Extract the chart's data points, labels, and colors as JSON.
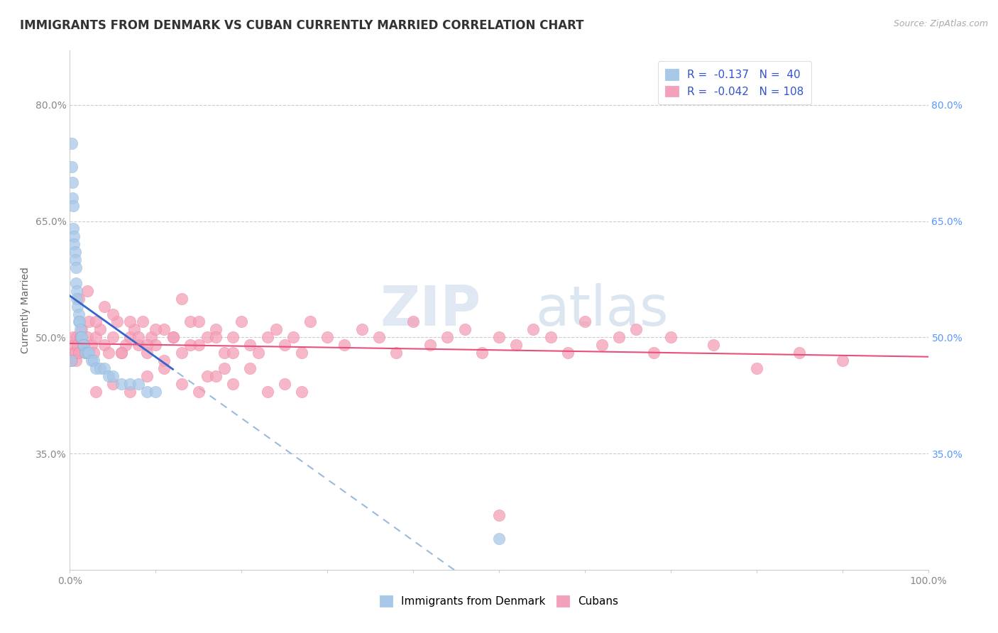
{
  "title": "IMMIGRANTS FROM DENMARK VS CUBAN CURRENTLY MARRIED CORRELATION CHART",
  "source": "Source: ZipAtlas.com",
  "ylabel": "Currently Married",
  "background_color": "#ffffff",
  "watermark_zip": "ZIP",
  "watermark_atlas": "atlas",
  "legend_label1": "Immigrants from Denmark",
  "legend_label2": "Cubans",
  "blue_fill": "#a8c8e8",
  "blue_edge": "#7aaed4",
  "blue_line_color": "#3366cc",
  "pink_fill": "#f4a0b8",
  "pink_edge": "#e87090",
  "pink_line_color": "#e8507a",
  "dash_color": "#99bbdd",
  "grid_color": "#cccccc",
  "right_tick_color": "#5599ff",
  "ytick_color": "#888888",
  "xtick_color": "#888888",
  "title_color": "#333333",
  "source_color": "#aaaaaa",
  "legend_text_color": "#3355cc",
  "ylim_low": 0.2,
  "ylim_high": 0.87,
  "xlim_low": 0.0,
  "xlim_high": 1.0,
  "ytick_vals": [
    0.35,
    0.5,
    0.65,
    0.8
  ],
  "xtick_vals": [
    0.0,
    0.1,
    0.2,
    0.3,
    0.4,
    0.5,
    0.6,
    0.7,
    0.8,
    0.9,
    1.0
  ],
  "denmark_x": [
    0.001,
    0.002,
    0.002,
    0.003,
    0.003,
    0.004,
    0.004,
    0.005,
    0.005,
    0.006,
    0.006,
    0.007,
    0.007,
    0.008,
    0.008,
    0.009,
    0.01,
    0.01,
    0.011,
    0.012,
    0.013,
    0.014,
    0.015,
    0.016,
    0.018,
    0.02,
    0.022,
    0.025,
    0.028,
    0.03,
    0.035,
    0.04,
    0.045,
    0.05,
    0.06,
    0.07,
    0.08,
    0.09,
    0.1,
    0.5
  ],
  "denmark_y": [
    0.47,
    0.75,
    0.72,
    0.7,
    0.68,
    0.67,
    0.64,
    0.63,
    0.62,
    0.61,
    0.6,
    0.59,
    0.57,
    0.56,
    0.55,
    0.54,
    0.53,
    0.52,
    0.52,
    0.51,
    0.5,
    0.5,
    0.49,
    0.49,
    0.48,
    0.48,
    0.48,
    0.47,
    0.47,
    0.46,
    0.46,
    0.46,
    0.45,
    0.45,
    0.44,
    0.44,
    0.44,
    0.43,
    0.43,
    0.24
  ],
  "cuba_x": [
    0.002,
    0.003,
    0.004,
    0.005,
    0.006,
    0.007,
    0.008,
    0.009,
    0.01,
    0.012,
    0.014,
    0.016,
    0.018,
    0.02,
    0.022,
    0.025,
    0.028,
    0.03,
    0.035,
    0.04,
    0.045,
    0.05,
    0.055,
    0.06,
    0.065,
    0.07,
    0.075,
    0.08,
    0.085,
    0.09,
    0.095,
    0.1,
    0.11,
    0.12,
    0.13,
    0.14,
    0.15,
    0.16,
    0.17,
    0.18,
    0.19,
    0.2,
    0.21,
    0.22,
    0.23,
    0.24,
    0.25,
    0.26,
    0.27,
    0.28,
    0.3,
    0.32,
    0.34,
    0.36,
    0.38,
    0.4,
    0.42,
    0.44,
    0.46,
    0.48,
    0.5,
    0.52,
    0.54,
    0.56,
    0.58,
    0.6,
    0.62,
    0.64,
    0.66,
    0.68,
    0.7,
    0.75,
    0.8,
    0.85,
    0.9,
    0.01,
    0.02,
    0.03,
    0.04,
    0.05,
    0.06,
    0.07,
    0.08,
    0.09,
    0.1,
    0.11,
    0.12,
    0.13,
    0.14,
    0.15,
    0.16,
    0.17,
    0.18,
    0.19,
    0.03,
    0.05,
    0.07,
    0.09,
    0.11,
    0.13,
    0.15,
    0.17,
    0.19,
    0.21,
    0.23,
    0.25,
    0.5,
    0.27
  ],
  "cuba_y": [
    0.47,
    0.48,
    0.5,
    0.49,
    0.48,
    0.47,
    0.5,
    0.49,
    0.48,
    0.5,
    0.51,
    0.49,
    0.48,
    0.5,
    0.52,
    0.49,
    0.48,
    0.5,
    0.51,
    0.49,
    0.48,
    0.5,
    0.52,
    0.48,
    0.49,
    0.5,
    0.51,
    0.49,
    0.52,
    0.48,
    0.5,
    0.49,
    0.51,
    0.5,
    0.48,
    0.52,
    0.49,
    0.5,
    0.51,
    0.48,
    0.5,
    0.52,
    0.49,
    0.48,
    0.5,
    0.51,
    0.49,
    0.5,
    0.48,
    0.52,
    0.5,
    0.49,
    0.51,
    0.5,
    0.48,
    0.52,
    0.49,
    0.5,
    0.51,
    0.48,
    0.5,
    0.49,
    0.51,
    0.5,
    0.48,
    0.52,
    0.49,
    0.5,
    0.51,
    0.48,
    0.5,
    0.49,
    0.46,
    0.48,
    0.47,
    0.55,
    0.56,
    0.52,
    0.54,
    0.53,
    0.48,
    0.52,
    0.5,
    0.49,
    0.51,
    0.47,
    0.5,
    0.55,
    0.49,
    0.52,
    0.45,
    0.5,
    0.46,
    0.48,
    0.43,
    0.44,
    0.43,
    0.45,
    0.46,
    0.44,
    0.43,
    0.45,
    0.44,
    0.46,
    0.43,
    0.44,
    0.27,
    0.43
  ],
  "title_fontsize": 12,
  "axis_label_fontsize": 10,
  "tick_fontsize": 10,
  "legend_fontsize": 11,
  "source_fontsize": 9
}
